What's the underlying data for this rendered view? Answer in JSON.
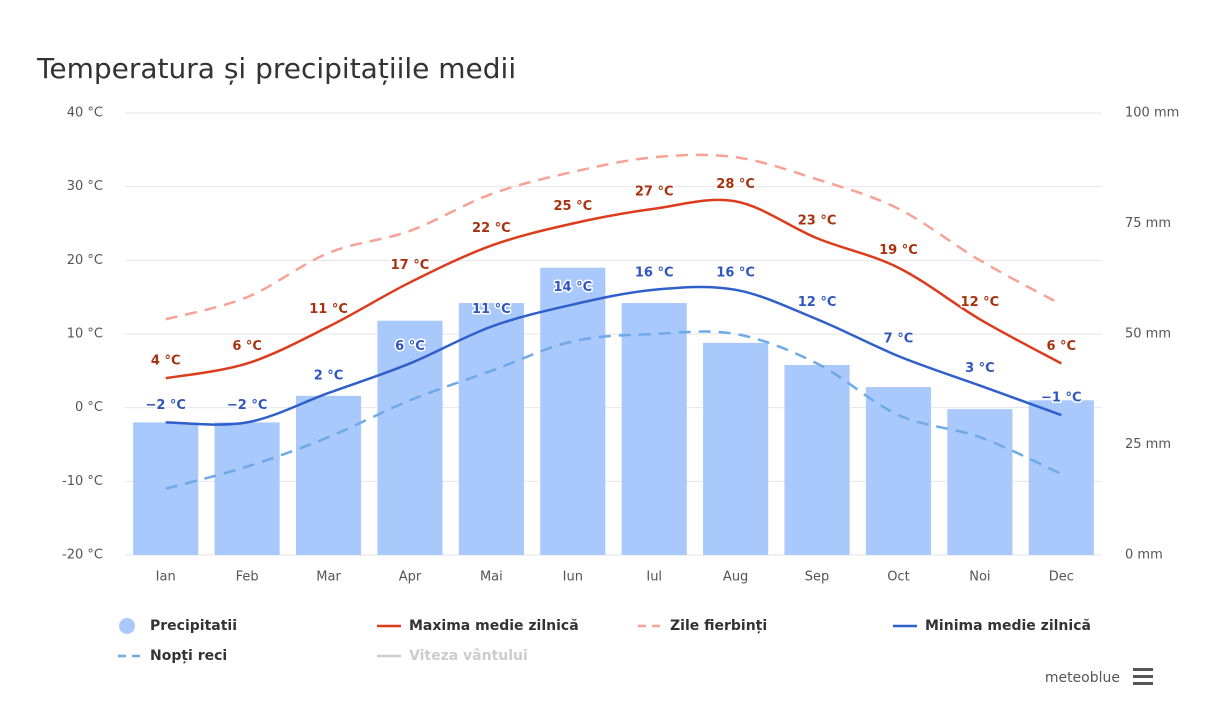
{
  "chart_data": {
    "type": "bar-line",
    "title": "Temperatura și precipitațiile medii",
    "categories": [
      "Ian",
      "Feb",
      "Mar",
      "Apr",
      "Mai",
      "Iun",
      "Iul",
      "Aug",
      "Sep",
      "Oct",
      "Noi",
      "Dec"
    ],
    "ylim": [
      -20,
      40
    ],
    "yticks": [
      {
        "value": -20,
        "label": "-20 °C"
      },
      {
        "value": -10,
        "label": "-10 °C"
      },
      {
        "value": 0,
        "label": "0 °C"
      },
      {
        "value": 10,
        "label": "10 °C"
      },
      {
        "value": 20,
        "label": "20 °C"
      },
      {
        "value": 30,
        "label": "30 °C"
      },
      {
        "value": 40,
        "label": "40 °C"
      }
    ],
    "y2lim": [
      0,
      100
    ],
    "y2ticks": [
      {
        "value": 0,
        "label": "0 mm"
      },
      {
        "value": 25,
        "label": "25 mm"
      },
      {
        "value": 50,
        "label": "50 mm"
      },
      {
        "value": 75,
        "label": "75 mm"
      },
      {
        "value": 100,
        "label": "100 mm"
      }
    ],
    "grid": true,
    "series": [
      {
        "name": "Precipitatii",
        "type": "bar",
        "axis": "y2",
        "color": "#a9c8fb",
        "values": [
          30,
          30,
          36,
          53,
          57,
          65,
          57,
          48,
          43,
          38,
          33,
          35
        ]
      },
      {
        "name": "Maxima medie zilnică",
        "type": "line",
        "color": "#dc3c1c",
        "label_color": "#a8320f",
        "values": [
          4,
          6,
          11,
          17,
          22,
          25,
          27,
          28,
          23,
          19,
          12,
          6
        ],
        "value_labels": [
          "4 °C",
          "6 °C",
          "11 °C",
          "17 °C",
          "22 °C",
          "25 °C",
          "27 °C",
          "28 °C",
          "23 °C",
          "19 °C",
          "12 °C",
          "6 °C"
        ]
      },
      {
        "name": "Zile fierbinți",
        "type": "line",
        "dashed": true,
        "color": "#f7a295",
        "values": [
          12,
          15,
          21,
          24,
          29,
          32,
          34,
          34,
          31,
          27,
          20,
          14
        ]
      },
      {
        "name": "Minima medie zilnică",
        "type": "line",
        "color": "#2f5fcb",
        "label_color": "#2f55c0",
        "values": [
          -2,
          -2,
          2,
          6,
          11,
          14,
          16,
          16,
          12,
          7,
          3,
          -1
        ],
        "value_labels": [
          "−2 °C",
          "−2 °C",
          "2 °C",
          "6 °C",
          "11 °C",
          "14 °C",
          "16 °C",
          "16 °C",
          "12 °C",
          "7 °C",
          "3 °C",
          "−1 °C"
        ]
      },
      {
        "name": "Nopți reci",
        "type": "line",
        "dashed": true,
        "color": "#6ea9e8",
        "values": [
          -11,
          -8,
          -4,
          1,
          5,
          9,
          10,
          10,
          6,
          -1,
          -4,
          -9
        ]
      },
      {
        "name": "Viteza vântului",
        "type": "line",
        "visible": false,
        "color": "#cccccc"
      }
    ],
    "credit": "meteoblue"
  }
}
